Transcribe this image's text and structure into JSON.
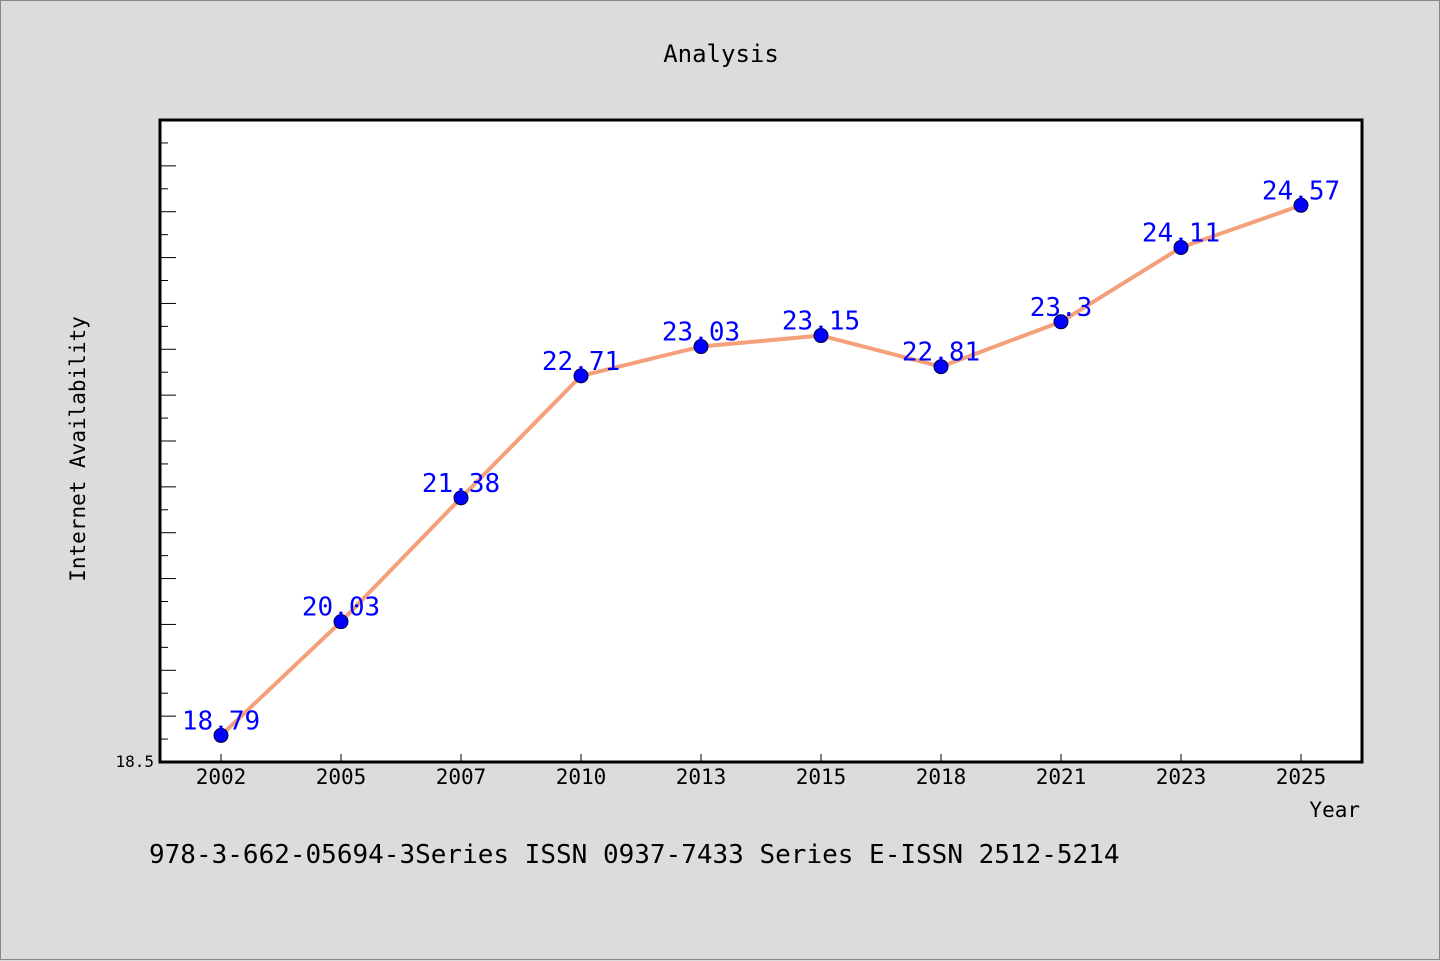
{
  "chart_data": {
    "type": "line",
    "title": "Analysis",
    "xlabel": "Year",
    "ylabel": "Internet Availability",
    "categories": [
      "2002",
      "2005",
      "2007",
      "2010",
      "2013",
      "2015",
      "2018",
      "2021",
      "2023",
      "2025"
    ],
    "series": [
      {
        "values": [
          18.79,
          20.03,
          21.38,
          22.71,
          23.03,
          23.15,
          22.81,
          23.3,
          24.11,
          24.57
        ],
        "data_labels": [
          "18.79",
          "20.03",
          "21.38",
          "22.71",
          "23.03",
          "23.15",
          "22.81",
          "23.3",
          "24.11",
          "24.57"
        ],
        "line_color": "#f4a07a",
        "marker_color": "#0000ff"
      }
    ],
    "y_tick_labels": [
      "18.5"
    ],
    "ylim": [
      18.5,
      25.5
    ],
    "grid": false,
    "legend": "none"
  },
  "footer_text": "978-3-662-05694-3Series ISSN 0937-7433 Series E-ISSN 2512-5214"
}
